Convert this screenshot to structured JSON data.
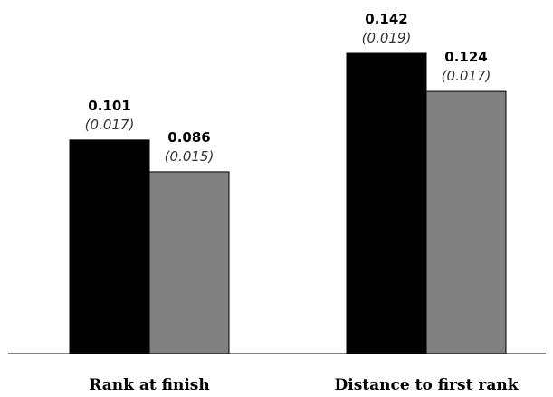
{
  "chart_data": {
    "type": "bar",
    "categories": [
      "Rank at finish",
      "Distance to first rank"
    ],
    "series": [
      {
        "color": "#000000",
        "values": [
          0.101,
          0.142
        ],
        "value_labels": [
          "0.101",
          "0.142"
        ],
        "se_labels": [
          "(0.017)",
          "(0.019)"
        ]
      },
      {
        "color": "#808080",
        "values": [
          0.086,
          0.124
        ],
        "value_labels": [
          "0.086",
          "0.124"
        ],
        "se_labels": [
          "(0.015)",
          "(0.017)"
        ]
      }
    ],
    "title": "",
    "xlabel": "",
    "ylabel": "",
    "ylim": [
      0,
      0.142
    ],
    "grid": false,
    "legend": "none"
  }
}
